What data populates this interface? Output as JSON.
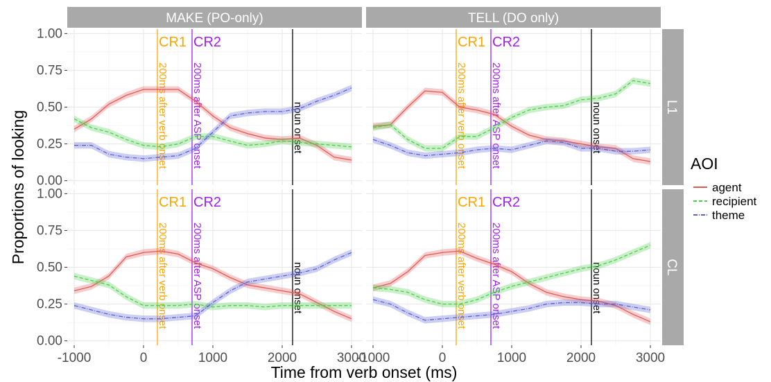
{
  "chart_data": {
    "type": "line",
    "xlabel": "Time from verb onset (ms)",
    "ylabel": "Proportions of looking",
    "xlim": [
      -1100,
      3150
    ],
    "ylim": [
      -0.03,
      1.03
    ],
    "xticks": [
      "-1000",
      "0",
      "1000",
      "2000",
      "3000"
    ],
    "xtick_values": [
      -1000,
      0,
      1000,
      2000,
      3000
    ],
    "yticks": [
      "0.00",
      "0.25",
      "0.50",
      "0.75",
      "1.00"
    ],
    "ytick_values": [
      0,
      0.25,
      0.5,
      0.75,
      1.0
    ],
    "column_labels": [
      "MAKE (PO-only)",
      "TELL (DO only)"
    ],
    "row_labels": [
      "L1",
      "CL"
    ],
    "legend": {
      "title": "AOI",
      "position": "right",
      "entries": [
        {
          "name": "agent",
          "color": "#e05a55",
          "dash": "solid"
        },
        {
          "name": "recipient",
          "color": "#4ccd4c",
          "dash": "dashed"
        },
        {
          "name": "theme",
          "color": "#5a5fd4",
          "dash": "dotdash"
        }
      ]
    },
    "vlines": [
      {
        "x": 200,
        "color": "#ffa500",
        "head": "CR1",
        "text": "200ms after verb onset"
      },
      {
        "x": 700,
        "color": "#a020f0",
        "head": "CR2",
        "text": "200ms after ASP onset"
      },
      {
        "x": 2150,
        "color": "#000000",
        "head": "",
        "text": "noun onset"
      }
    ],
    "x": [
      -1000,
      -750,
      -500,
      -250,
      0,
      250,
      500,
      750,
      1000,
      1250,
      1500,
      1750,
      2000,
      2250,
      2500,
      2750,
      3000
    ],
    "panels": [
      {
        "col": 0,
        "row": 0,
        "series": [
          {
            "name": "agent",
            "values": [
              0.35,
              0.42,
              0.52,
              0.58,
              0.62,
              0.62,
              0.62,
              0.54,
              0.44,
              0.36,
              0.32,
              0.29,
              0.28,
              0.29,
              0.24,
              0.16,
              0.14
            ]
          },
          {
            "name": "recipient",
            "values": [
              0.42,
              0.36,
              0.33,
              0.28,
              0.24,
              0.23,
              0.25,
              0.3,
              0.3,
              0.27,
              0.24,
              0.25,
              0.27,
              0.26,
              0.25,
              0.24,
              0.23
            ]
          },
          {
            "name": "theme",
            "values": [
              0.24,
              0.24,
              0.18,
              0.16,
              0.15,
              0.16,
              0.17,
              0.22,
              0.33,
              0.44,
              0.46,
              0.47,
              0.47,
              0.49,
              0.54,
              0.58,
              0.63
            ]
          }
        ]
      },
      {
        "col": 1,
        "row": 0,
        "series": [
          {
            "name": "agent",
            "values": [
              0.37,
              0.38,
              0.5,
              0.61,
              0.6,
              0.5,
              0.48,
              0.45,
              0.37,
              0.31,
              0.28,
              0.27,
              0.25,
              0.23,
              0.22,
              0.15,
              0.13
            ]
          },
          {
            "name": "recipient",
            "values": [
              0.36,
              0.38,
              0.28,
              0.22,
              0.22,
              0.3,
              0.3,
              0.36,
              0.43,
              0.48,
              0.5,
              0.51,
              0.55,
              0.56,
              0.59,
              0.68,
              0.66
            ]
          },
          {
            "name": "theme",
            "values": [
              0.28,
              0.24,
              0.19,
              0.17,
              0.18,
              0.19,
              0.21,
              0.22,
              0.21,
              0.24,
              0.27,
              0.26,
              0.22,
              0.22,
              0.2,
              0.2,
              0.21
            ]
          }
        ]
      },
      {
        "col": 0,
        "row": 1,
        "series": [
          {
            "name": "agent",
            "values": [
              0.34,
              0.37,
              0.44,
              0.57,
              0.6,
              0.61,
              0.59,
              0.53,
              0.49,
              0.43,
              0.38,
              0.36,
              0.34,
              0.32,
              0.26,
              0.2,
              0.15
            ]
          },
          {
            "name": "recipient",
            "values": [
              0.44,
              0.41,
              0.38,
              0.3,
              0.24,
              0.24,
              0.24,
              0.25,
              0.23,
              0.24,
              0.24,
              0.23,
              0.24,
              0.24,
              0.24,
              0.24,
              0.24
            ]
          },
          {
            "name": "theme",
            "values": [
              0.24,
              0.21,
              0.18,
              0.16,
              0.15,
              0.15,
              0.16,
              0.17,
              0.26,
              0.34,
              0.4,
              0.42,
              0.44,
              0.46,
              0.49,
              0.55,
              0.6
            ]
          }
        ]
      },
      {
        "col": 1,
        "row": 1,
        "series": [
          {
            "name": "agent",
            "values": [
              0.36,
              0.39,
              0.47,
              0.58,
              0.6,
              0.61,
              0.56,
              0.52,
              0.47,
              0.39,
              0.33,
              0.3,
              0.28,
              0.27,
              0.24,
              0.18,
              0.13
            ]
          },
          {
            "name": "recipient",
            "values": [
              0.36,
              0.35,
              0.33,
              0.28,
              0.25,
              0.25,
              0.28,
              0.33,
              0.37,
              0.4,
              0.43,
              0.46,
              0.49,
              0.51,
              0.55,
              0.6,
              0.65
            ]
          },
          {
            "name": "theme",
            "values": [
              0.28,
              0.25,
              0.19,
              0.14,
              0.15,
              0.16,
              0.17,
              0.18,
              0.2,
              0.22,
              0.25,
              0.26,
              0.26,
              0.25,
              0.25,
              0.23,
              0.21
            ]
          }
        ]
      }
    ]
  }
}
